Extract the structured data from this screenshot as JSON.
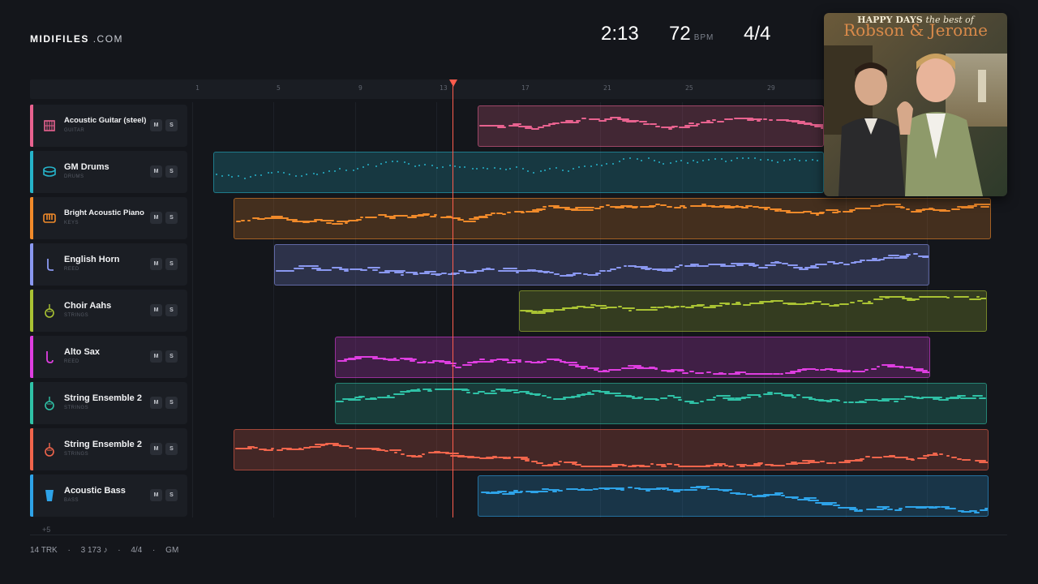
{
  "brand": {
    "name": "MIDIFILES",
    "suffix": ".COM"
  },
  "transport": {
    "time": "2:13",
    "tempo": "72",
    "tempo_unit": "BPM",
    "meter": "4/4"
  },
  "ruler": {
    "ticks": [
      "1",
      "5",
      "9",
      "13",
      "17",
      "21",
      "25",
      "29"
    ]
  },
  "playhead": {
    "bar": 13.4
  },
  "album": {
    "title_line1": "HAPPY DAYS",
    "title_line2": "the best of",
    "artist": "Robson & Jerome"
  },
  "tracks": [
    {
      "name": "Acoustic Guitar (steel)",
      "category": "GUITAR",
      "color": "#e8628f",
      "icon": "guitar-icon",
      "mute": "M",
      "solo": "S"
    },
    {
      "name": "GM Drums",
      "category": "DRUMS",
      "color": "#26b3c9",
      "icon": "drum-icon",
      "mute": "M",
      "solo": "S"
    },
    {
      "name": "Bright Acoustic Piano",
      "category": "KEYS",
      "color": "#f08a2a",
      "icon": "piano-icon",
      "mute": "M",
      "solo": "S"
    },
    {
      "name": "English Horn",
      "category": "REED",
      "color": "#8a98f0",
      "icon": "reed-icon",
      "mute": "M",
      "solo": "S"
    },
    {
      "name": "Choir Aahs",
      "category": "STRINGS",
      "color": "#a9c233",
      "icon": "violin-icon",
      "mute": "M",
      "solo": "S"
    },
    {
      "name": "Alto Sax",
      "category": "REED",
      "color": "#de3ee0",
      "icon": "sax-icon",
      "mute": "M",
      "solo": "S"
    },
    {
      "name": "String Ensemble 2",
      "category": "STRINGS",
      "color": "#2fc1a6",
      "icon": "violin-icon",
      "mute": "M",
      "solo": "S"
    },
    {
      "name": "String Ensemble 2",
      "category": "STRINGS",
      "color": "#f0654c",
      "icon": "violin-icon",
      "mute": "M",
      "solo": "S"
    },
    {
      "name": "Acoustic Bass",
      "category": "BASS",
      "color": "#2ea3e8",
      "icon": "bass-icon",
      "mute": "M",
      "solo": "S"
    }
  ],
  "more_tracks": "+5",
  "footer": {
    "tracks": "14 TRK",
    "notes": "3 173 ♪",
    "meter": "4/4",
    "format": "GM",
    "sep": "·"
  }
}
